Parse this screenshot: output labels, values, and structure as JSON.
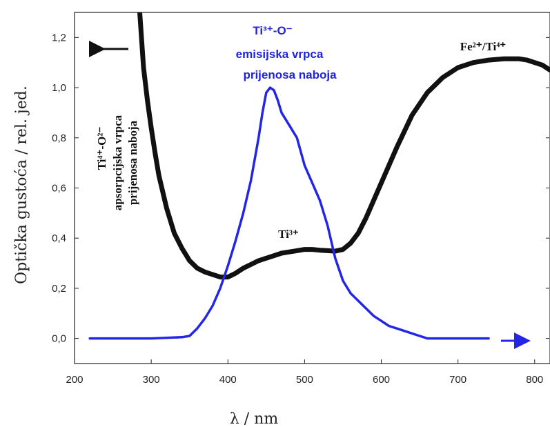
{
  "chart_data": {
    "type": "line",
    "title": "",
    "xlabel": "λ / nm",
    "ylabel": "Optička gustoća / rel. jed.",
    "xlim": [
      200,
      820
    ],
    "ylim": [
      -0.1,
      1.3
    ],
    "x_ticks": [
      "200",
      "300",
      "400",
      "500",
      "600",
      "700",
      "800"
    ],
    "y_ticks": [
      "0,0",
      "0,2",
      "0,4",
      "0,6",
      "0,8",
      "1,0",
      "1,2"
    ],
    "grid": false,
    "colors": {
      "absorption": "#111111",
      "emission": "#2326e6"
    },
    "series": [
      {
        "x": [
          285,
          290,
          295,
          300,
          305,
          310,
          320,
          330,
          340,
          350,
          360,
          370,
          380,
          390,
          400,
          410,
          420,
          430,
          440,
          450,
          460,
          470,
          480,
          490,
          500,
          510,
          520,
          530,
          540,
          550,
          560,
          570,
          580,
          590,
          600,
          620,
          640,
          660,
          680,
          700,
          720,
          740,
          760,
          780,
          790,
          800,
          810,
          820
        ],
        "y": [
          1.3,
          1.08,
          0.95,
          0.84,
          0.74,
          0.65,
          0.52,
          0.42,
          0.36,
          0.31,
          0.28,
          0.265,
          0.255,
          0.245,
          0.245,
          0.26,
          0.28,
          0.295,
          0.31,
          0.32,
          0.33,
          0.34,
          0.345,
          0.35,
          0.355,
          0.355,
          0.352,
          0.35,
          0.348,
          0.355,
          0.38,
          0.42,
          0.48,
          0.55,
          0.62,
          0.76,
          0.89,
          0.98,
          1.04,
          1.08,
          1.1,
          1.11,
          1.115,
          1.115,
          1.11,
          1.1,
          1.09,
          1.07
        ]
      },
      {
        "x": [
          220,
          300,
          340,
          350,
          360,
          370,
          380,
          390,
          400,
          410,
          420,
          430,
          440,
          445,
          450,
          455,
          460,
          465,
          470,
          480,
          490,
          500,
          510,
          520,
          530,
          540,
          550,
          560,
          570,
          580,
          590,
          600,
          610,
          620,
          630,
          640,
          650,
          660,
          680,
          700,
          740
        ],
        "y": [
          0.0,
          0.0,
          0.005,
          0.01,
          0.04,
          0.08,
          0.13,
          0.2,
          0.29,
          0.39,
          0.5,
          0.63,
          0.8,
          0.9,
          0.98,
          1.0,
          0.99,
          0.95,
          0.9,
          0.85,
          0.8,
          0.69,
          0.62,
          0.55,
          0.45,
          0.32,
          0.23,
          0.18,
          0.15,
          0.12,
          0.09,
          0.07,
          0.05,
          0.04,
          0.03,
          0.02,
          0.01,
          0.0,
          0.0,
          0.0,
          0.0
        ]
      }
    ],
    "annotations": {
      "absorption_band_line1": "Ti⁴⁺-O²⁻",
      "absorption_band_line2": "apsorpcijska vrpca",
      "absorption_band_line3": "prijenosa naboja",
      "emission_band_line1": "Ti³⁺-O⁻",
      "emission_band_line2": "emisijska vrpca",
      "emission_band_line3": "prijenosa naboja",
      "ti3_label": "Ti³⁺",
      "fe_ti_label": "Fe²⁺/Ti⁴⁺"
    }
  }
}
